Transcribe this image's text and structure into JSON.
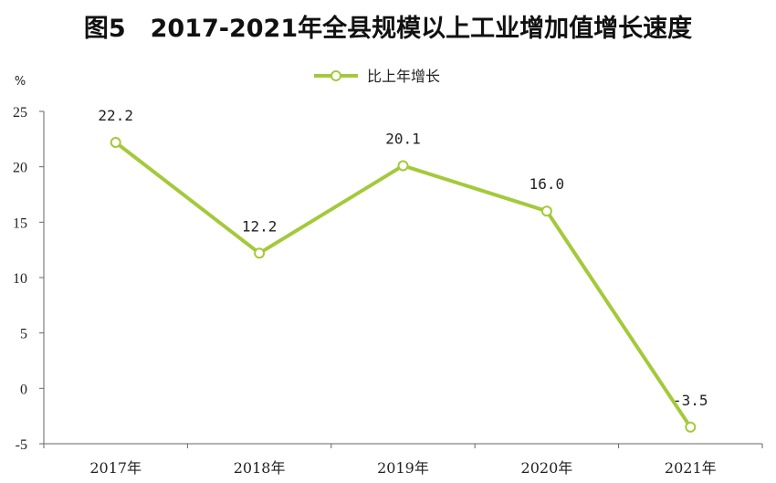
{
  "chart_data": {
    "type": "line",
    "title": "图5　2017-2021年全县规模以上工业增加值增长速度",
    "ylabel": "%",
    "categories": [
      "2017年",
      "2018年",
      "2019年",
      "2020年",
      "2021年"
    ],
    "series": [
      {
        "name": "比上年增长",
        "values": [
          22.2,
          12.2,
          20.1,
          16.0,
          -3.5
        ],
        "labels": [
          "22.2",
          "12.2",
          "20.1",
          "16.0",
          "-3.5"
        ],
        "color": "#a4c93a"
      }
    ],
    "ylim": [
      -5,
      25
    ],
    "yticks": [
      "25",
      "20",
      "15",
      "10",
      "5",
      "0",
      "-5"
    ],
    "ytick_values": [
      25,
      20,
      15,
      10,
      5,
      0,
      -5
    ],
    "grid": false,
    "legend": "top-center"
  }
}
